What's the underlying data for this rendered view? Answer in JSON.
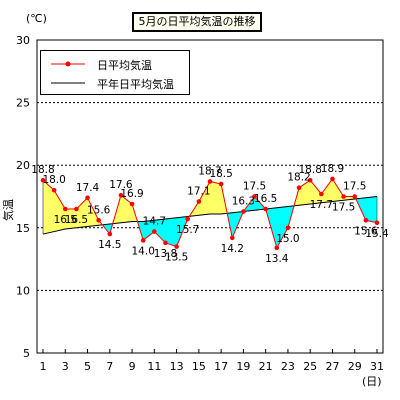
{
  "chart_data": {
    "type": "line",
    "title": "5月の日平均気温の推移",
    "ylabel": "気温",
    "unit_label": "(℃)",
    "x_unit_label": "(日)",
    "ylim": [
      5,
      30
    ],
    "yticks": [
      5,
      10,
      15,
      20,
      25,
      30
    ],
    "xlim": [
      1,
      31
    ],
    "xticks": [
      1,
      3,
      5,
      7,
      9,
      11,
      13,
      15,
      17,
      19,
      21,
      23,
      25,
      27,
      29,
      31
    ],
    "grid": true,
    "legend_position": "top-left",
    "x": [
      1,
      2,
      3,
      4,
      5,
      6,
      7,
      8,
      9,
      10,
      11,
      12,
      13,
      14,
      15,
      16,
      17,
      18,
      19,
      20,
      21,
      22,
      23,
      24,
      25,
      26,
      27,
      28,
      29,
      30,
      31
    ],
    "series": [
      {
        "name": "日平均気温",
        "color": "#ff0000",
        "values": [
          18.8,
          18.0,
          16.5,
          16.5,
          17.4,
          15.6,
          14.5,
          17.6,
          16.9,
          14.0,
          14.7,
          13.8,
          13.5,
          15.7,
          17.1,
          18.7,
          18.5,
          14.2,
          16.3,
          17.5,
          16.5,
          13.4,
          15.0,
          18.2,
          18.8,
          17.7,
          18.9,
          17.5,
          17.5,
          15.6,
          15.4
        ],
        "labels": [
          "18.8",
          "18.0",
          "16.5",
          "16.5",
          "17.4",
          "15.6",
          "14.5",
          "17.6",
          "16.9",
          "14.0",
          "14.7",
          "13.8",
          "13.5",
          "15.7",
          "17.1",
          "18.7",
          "18.5",
          "14.2",
          "16.3",
          "17.5",
          "16.5",
          "13.4",
          "15.0",
          "18.2",
          "18.8",
          "17.7",
          "18.9",
          "17.5",
          "17.5",
          "15.6",
          "15.4"
        ]
      },
      {
        "name": "平年日平均気温",
        "color": "#000000",
        "values": [
          14.5,
          14.7,
          14.9,
          15.0,
          15.1,
          15.2,
          15.3,
          15.4,
          15.5,
          15.5,
          15.6,
          15.7,
          15.8,
          15.9,
          16.0,
          16.1,
          16.1,
          16.2,
          16.3,
          16.4,
          16.5,
          16.6,
          16.7,
          16.8,
          16.9,
          17.0,
          17.1,
          17.2,
          17.3,
          17.4,
          17.5
        ]
      }
    ],
    "above_normal_fill": "#ffff66",
    "below_normal_fill": "#00ffff"
  }
}
